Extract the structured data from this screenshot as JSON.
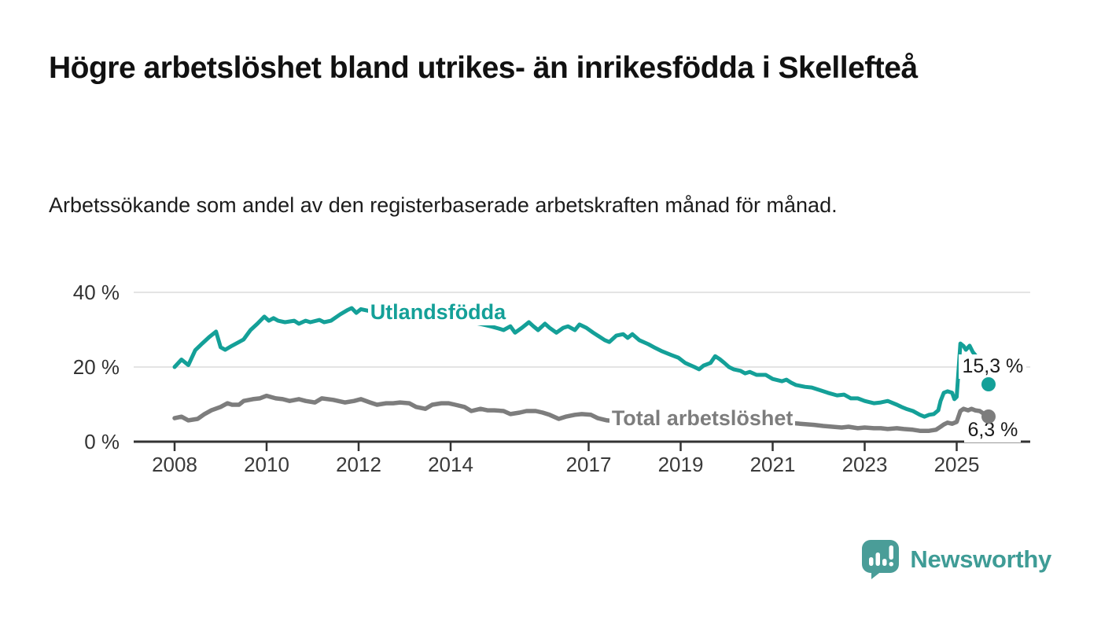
{
  "header": {
    "title": "Högre arbetslöshet bland utrikes- än inrikesfödda i Skellefteå",
    "subtitle": "Arbetssökande som andel av den registerbaserade arbetskraften månad för månad."
  },
  "chart_data": {
    "type": "line",
    "title": "Arbetssökande som andel av den registerbaserade arbetskraften månad för månad",
    "xlabel": "",
    "ylabel": "",
    "ylim": [
      0,
      40
    ],
    "x_range": [
      2008.0,
      2025.7
    ],
    "grid": "horizontal",
    "legend_position": "inline labels on lines",
    "y_axis": {
      "unit": "%",
      "ticks": [
        {
          "value": 40,
          "label": "40 %"
        },
        {
          "value": 20,
          "label": "20 %"
        },
        {
          "value": 0,
          "label": "0 %"
        }
      ]
    },
    "x_axis": {
      "ticks": [
        2008,
        2010,
        2012,
        2014,
        2017,
        2019,
        2021,
        2023,
        2025
      ]
    },
    "colors": {
      "foreign_born": "#14a098",
      "total": "#7d7d7d",
      "gridline": "#dcdcdc",
      "axis": "#333333"
    },
    "series": [
      {
        "id": "utlandsfodda",
        "name": "Utlandsfödda",
        "color": "#14a098",
        "line_width": 5,
        "inline_label": {
          "text": "Utlandsfödda",
          "anchor_year": 2012.2,
          "anchor_pct": 34.7
        },
        "end_label": {
          "text": "15,3 %",
          "value": 15.3
        },
        "points": [
          [
            2008.0,
            20.0
          ],
          [
            2008.15,
            22.0
          ],
          [
            2008.3,
            20.5
          ],
          [
            2008.45,
            24.5
          ],
          [
            2008.6,
            26.3
          ],
          [
            2008.75,
            28.0
          ],
          [
            2008.9,
            29.5
          ],
          [
            2009.0,
            25.3
          ],
          [
            2009.1,
            24.6
          ],
          [
            2009.25,
            25.7
          ],
          [
            2009.4,
            26.7
          ],
          [
            2009.5,
            27.4
          ],
          [
            2009.65,
            29.9
          ],
          [
            2009.8,
            31.6
          ],
          [
            2009.95,
            33.5
          ],
          [
            2010.05,
            32.4
          ],
          [
            2010.15,
            33.1
          ],
          [
            2010.25,
            32.4
          ],
          [
            2010.4,
            32.0
          ],
          [
            2010.6,
            32.4
          ],
          [
            2010.7,
            31.6
          ],
          [
            2010.85,
            32.4
          ],
          [
            2010.95,
            32.0
          ],
          [
            2011.15,
            32.6
          ],
          [
            2011.25,
            32.0
          ],
          [
            2011.4,
            32.4
          ],
          [
            2011.6,
            34.1
          ],
          [
            2011.75,
            35.2
          ],
          [
            2011.85,
            35.8
          ],
          [
            2011.95,
            34.5
          ],
          [
            2012.05,
            35.5
          ],
          [
            2012.2,
            35.1
          ],
          [
            2012.35,
            34.6
          ],
          [
            2012.5,
            34.2
          ],
          [
            2012.65,
            33.9
          ],
          [
            2012.8,
            34.2
          ],
          [
            2012.95,
            33.6
          ],
          [
            2013.1,
            33.3
          ],
          [
            2013.3,
            33.5
          ],
          [
            2013.5,
            33.0
          ],
          [
            2013.7,
            33.2
          ],
          [
            2013.9,
            32.6
          ],
          [
            2014.1,
            32.8
          ],
          [
            2014.3,
            32.2
          ],
          [
            2014.5,
            31.9
          ],
          [
            2014.7,
            31.4
          ],
          [
            2014.9,
            30.8
          ],
          [
            2015.05,
            30.3
          ],
          [
            2015.15,
            29.9
          ],
          [
            2015.3,
            30.9
          ],
          [
            2015.4,
            29.2
          ],
          [
            2015.55,
            30.5
          ],
          [
            2015.7,
            32.0
          ],
          [
            2015.8,
            30.9
          ],
          [
            2015.9,
            29.9
          ],
          [
            2016.05,
            31.6
          ],
          [
            2016.15,
            30.5
          ],
          [
            2016.3,
            29.2
          ],
          [
            2016.45,
            30.5
          ],
          [
            2016.55,
            30.9
          ],
          [
            2016.7,
            29.9
          ],
          [
            2016.8,
            31.4
          ],
          [
            2016.95,
            30.5
          ],
          [
            2017.1,
            29.2
          ],
          [
            2017.2,
            28.4
          ],
          [
            2017.35,
            27.2
          ],
          [
            2017.45,
            26.7
          ],
          [
            2017.6,
            28.4
          ],
          [
            2017.75,
            28.8
          ],
          [
            2017.85,
            27.8
          ],
          [
            2017.95,
            28.8
          ],
          [
            2018.1,
            27.2
          ],
          [
            2018.3,
            26.1
          ],
          [
            2018.45,
            25.1
          ],
          [
            2018.6,
            24.2
          ],
          [
            2018.8,
            23.2
          ],
          [
            2018.95,
            22.5
          ],
          [
            2019.1,
            21.1
          ],
          [
            2019.3,
            20.0
          ],
          [
            2019.4,
            19.4
          ],
          [
            2019.5,
            20.4
          ],
          [
            2019.65,
            21.1
          ],
          [
            2019.75,
            22.9
          ],
          [
            2019.85,
            22.1
          ],
          [
            2019.95,
            21.1
          ],
          [
            2020.05,
            20.0
          ],
          [
            2020.15,
            19.4
          ],
          [
            2020.3,
            19.0
          ],
          [
            2020.4,
            18.3
          ],
          [
            2020.5,
            18.7
          ],
          [
            2020.65,
            17.9
          ],
          [
            2020.85,
            17.9
          ],
          [
            2021.0,
            16.8
          ],
          [
            2021.2,
            16.2
          ],
          [
            2021.3,
            16.6
          ],
          [
            2021.4,
            15.8
          ],
          [
            2021.5,
            15.2
          ],
          [
            2021.7,
            14.7
          ],
          [
            2021.85,
            14.5
          ],
          [
            2022.05,
            13.7
          ],
          [
            2022.2,
            13.1
          ],
          [
            2022.4,
            12.4
          ],
          [
            2022.55,
            12.6
          ],
          [
            2022.7,
            11.6
          ],
          [
            2022.85,
            11.6
          ],
          [
            2023.0,
            10.9
          ],
          [
            2023.2,
            10.3
          ],
          [
            2023.35,
            10.5
          ],
          [
            2023.5,
            10.9
          ],
          [
            2023.7,
            9.9
          ],
          [
            2023.8,
            9.3
          ],
          [
            2023.9,
            8.8
          ],
          [
            2024.05,
            8.2
          ],
          [
            2024.2,
            7.2
          ],
          [
            2024.3,
            6.7
          ],
          [
            2024.4,
            7.2
          ],
          [
            2024.5,
            7.4
          ],
          [
            2024.6,
            8.4
          ],
          [
            2024.65,
            10.9
          ],
          [
            2024.72,
            13.1
          ],
          [
            2024.8,
            13.5
          ],
          [
            2024.9,
            13.1
          ],
          [
            2024.95,
            11.4
          ],
          [
            2025.0,
            12.0
          ],
          [
            2025.08,
            26.3
          ],
          [
            2025.15,
            25.6
          ],
          [
            2025.2,
            24.6
          ],
          [
            2025.28,
            25.7
          ],
          [
            2025.35,
            24.0
          ],
          [
            2025.45,
            22.5
          ],
          [
            2025.55,
            21.2
          ],
          [
            2025.7,
            15.3
          ]
        ]
      },
      {
        "id": "total",
        "name": "Total arbetslöshet",
        "color": "#7d7d7d",
        "line_width": 5.5,
        "inline_label": {
          "text": "Total arbetslöshet",
          "anchor_year": 2017.45,
          "anchor_pct": 6.3
        },
        "end_label": {
          "text": "6,3 %",
          "value": 6.3
        },
        "points": [
          [
            2008.0,
            6.3
          ],
          [
            2008.15,
            6.7
          ],
          [
            2008.3,
            5.7
          ],
          [
            2008.5,
            6.1
          ],
          [
            2008.65,
            7.4
          ],
          [
            2008.8,
            8.4
          ],
          [
            2009.0,
            9.3
          ],
          [
            2009.15,
            10.3
          ],
          [
            2009.25,
            9.9
          ],
          [
            2009.4,
            9.9
          ],
          [
            2009.5,
            10.9
          ],
          [
            2009.7,
            11.4
          ],
          [
            2009.85,
            11.6
          ],
          [
            2010.0,
            12.3
          ],
          [
            2010.2,
            11.6
          ],
          [
            2010.35,
            11.4
          ],
          [
            2010.5,
            10.9
          ],
          [
            2010.7,
            11.4
          ],
          [
            2010.85,
            10.9
          ],
          [
            2011.05,
            10.5
          ],
          [
            2011.2,
            11.6
          ],
          [
            2011.45,
            11.2
          ],
          [
            2011.7,
            10.5
          ],
          [
            2011.9,
            10.9
          ],
          [
            2012.05,
            11.4
          ],
          [
            2012.25,
            10.5
          ],
          [
            2012.4,
            9.9
          ],
          [
            2012.6,
            10.3
          ],
          [
            2012.75,
            10.3
          ],
          [
            2012.9,
            10.5
          ],
          [
            2013.1,
            10.3
          ],
          [
            2013.25,
            9.3
          ],
          [
            2013.45,
            8.8
          ],
          [
            2013.6,
            9.9
          ],
          [
            2013.8,
            10.3
          ],
          [
            2013.95,
            10.3
          ],
          [
            2014.1,
            9.9
          ],
          [
            2014.3,
            9.3
          ],
          [
            2014.45,
            8.2
          ],
          [
            2014.65,
            8.8
          ],
          [
            2014.8,
            8.4
          ],
          [
            2014.95,
            8.4
          ],
          [
            2015.15,
            8.2
          ],
          [
            2015.3,
            7.4
          ],
          [
            2015.5,
            7.8
          ],
          [
            2015.65,
            8.2
          ],
          [
            2015.85,
            8.2
          ],
          [
            2016.0,
            7.8
          ],
          [
            2016.15,
            7.2
          ],
          [
            2016.35,
            6.1
          ],
          [
            2016.5,
            6.7
          ],
          [
            2016.7,
            7.2
          ],
          [
            2016.85,
            7.4
          ],
          [
            2017.05,
            7.2
          ],
          [
            2017.2,
            6.3
          ],
          [
            2017.4,
            5.7
          ],
          [
            2017.6,
            5.5
          ],
          [
            2017.8,
            5.4
          ],
          [
            2018.0,
            5.3
          ],
          [
            2018.3,
            5.1
          ],
          [
            2018.6,
            5.0
          ],
          [
            2018.9,
            4.9
          ],
          [
            2019.2,
            4.8
          ],
          [
            2019.5,
            4.8
          ],
          [
            2019.8,
            4.9
          ],
          [
            2020.1,
            5.3
          ],
          [
            2020.3,
            5.7
          ],
          [
            2020.5,
            5.9
          ],
          [
            2020.8,
            5.7
          ],
          [
            2021.0,
            5.4
          ],
          [
            2021.3,
            5.1
          ],
          [
            2021.6,
            4.8
          ],
          [
            2021.9,
            4.5
          ],
          [
            2022.1,
            4.2
          ],
          [
            2022.3,
            4.0
          ],
          [
            2022.5,
            3.8
          ],
          [
            2022.65,
            4.0
          ],
          [
            2022.85,
            3.6
          ],
          [
            2023.0,
            3.8
          ],
          [
            2023.2,
            3.6
          ],
          [
            2023.35,
            3.6
          ],
          [
            2023.5,
            3.4
          ],
          [
            2023.7,
            3.6
          ],
          [
            2023.85,
            3.4
          ],
          [
            2024.05,
            3.2
          ],
          [
            2024.2,
            2.9
          ],
          [
            2024.4,
            2.9
          ],
          [
            2024.55,
            3.2
          ],
          [
            2024.65,
            4.0
          ],
          [
            2024.72,
            4.6
          ],
          [
            2024.8,
            5.1
          ],
          [
            2024.9,
            4.8
          ],
          [
            2025.0,
            5.3
          ],
          [
            2025.08,
            8.2
          ],
          [
            2025.15,
            8.8
          ],
          [
            2025.25,
            8.4
          ],
          [
            2025.32,
            8.8
          ],
          [
            2025.4,
            8.4
          ],
          [
            2025.5,
            8.2
          ],
          [
            2025.6,
            7.4
          ],
          [
            2025.7,
            6.3
          ]
        ]
      }
    ]
  },
  "footer": {
    "brand": "Newsworthy",
    "brand_color": "#3f9c96",
    "logo_color": "#4a9d98"
  }
}
